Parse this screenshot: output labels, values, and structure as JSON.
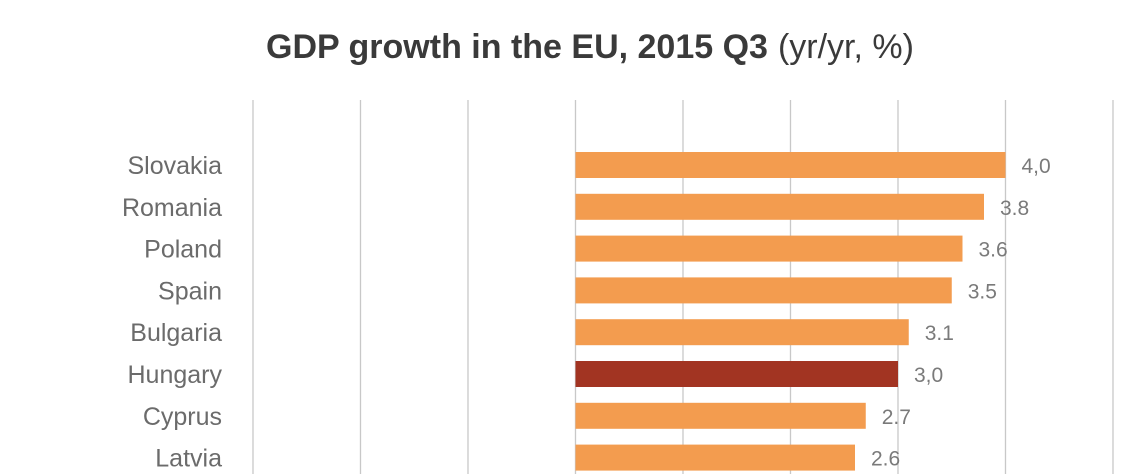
{
  "chart_data": {
    "type": "bar",
    "orientation": "horizontal",
    "title": "GDP growth in the EU, 2015 Q3",
    "title_unit": "(yr/yr, %)",
    "categories": [
      "Slovakia",
      "Romania",
      "Poland",
      "Spain",
      "Bulgaria",
      "Hungary",
      "Cyprus",
      "Latvia"
    ],
    "values": [
      4.0,
      3.8,
      3.6,
      3.5,
      3.1,
      3.0,
      2.7,
      2.6
    ],
    "value_labels": [
      "4,0",
      "3.8",
      "3.6",
      "3.5",
      "3.1",
      "3,0",
      "2.7",
      "2.6"
    ],
    "highlight": "Hungary",
    "xlim": [
      -3,
      5
    ],
    "grid": true,
    "colors": {
      "bar": "#f39c4f",
      "highlight": "#a23422",
      "grid": "#c8c8c8"
    }
  }
}
